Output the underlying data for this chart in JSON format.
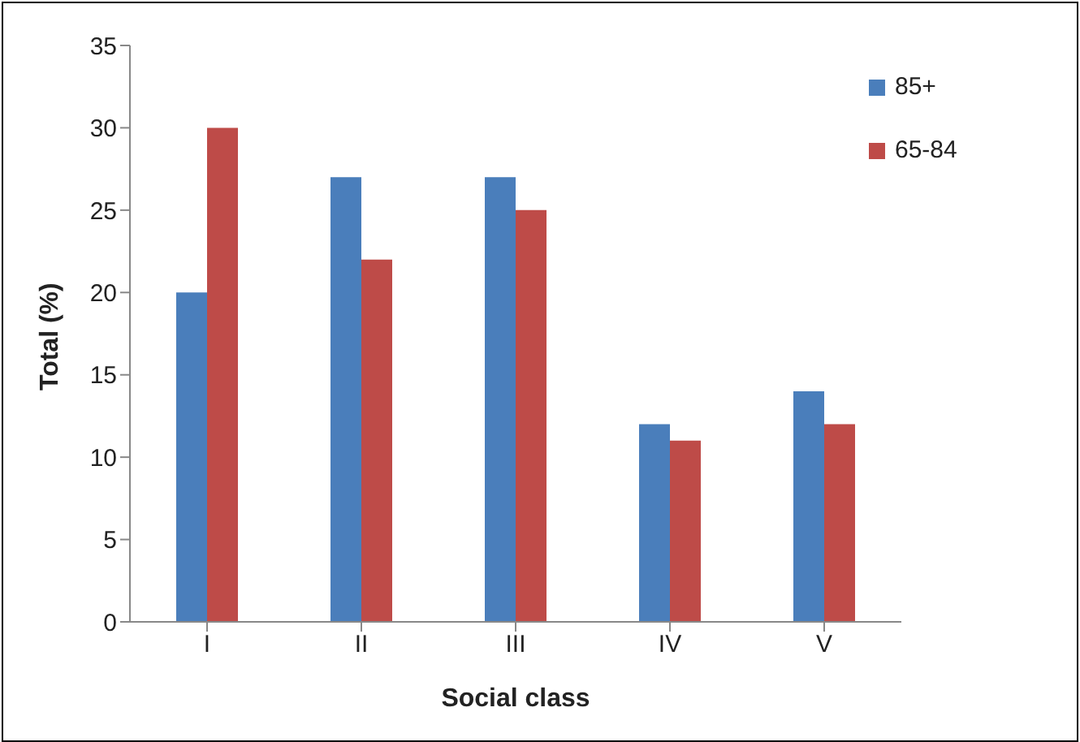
{
  "chart_data": {
    "type": "bar",
    "xlabel": "Social class",
    "ylabel": "Total (%)",
    "categories": [
      "I",
      "II",
      "III",
      "IV",
      "V"
    ],
    "series": [
      {
        "name": "85+",
        "color": "#4a7ebb",
        "values": [
          20,
          27,
          27,
          12,
          14
        ]
      },
      {
        "name": "65-84",
        "color": "#be4b48",
        "values": [
          30,
          22,
          25,
          11,
          12
        ]
      }
    ],
    "ylim": [
      0,
      35
    ],
    "yticks": [
      0,
      5,
      10,
      15,
      20,
      25,
      30,
      35
    ],
    "legend": "top right"
  }
}
